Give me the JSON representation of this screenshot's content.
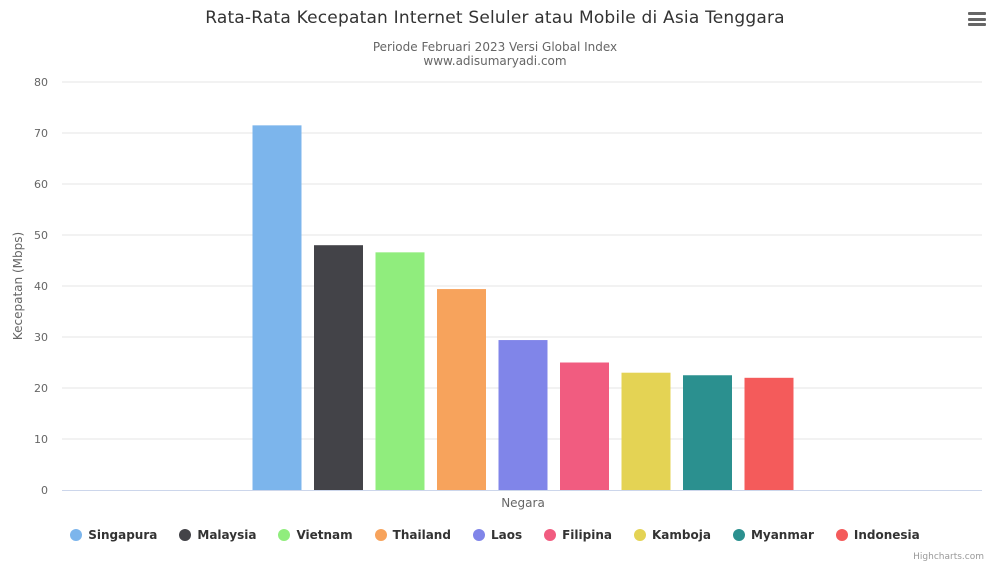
{
  "title": "Rata-Rata Kecepatan Internet Seluler atau Mobile di Asia Tenggara",
  "subtitle_line1": "Periode Februari 2023 Versi Global Index",
  "subtitle_line2": "www.adisumaryadi.com",
  "credits": "Highcharts.com",
  "menu_icon": "hamburger-icon",
  "chart_data": {
    "type": "bar",
    "xlabel": "Negara",
    "ylabel": "Kecepatan (Mbps)",
    "ylim": [
      0,
      80
    ],
    "yticks": [
      0,
      10,
      20,
      30,
      40,
      50,
      60,
      70,
      80
    ],
    "grid": true,
    "legend_position": "bottom-center",
    "series": [
      {
        "name": "Singapura",
        "value": 71.5,
        "color": "#7cb5ec"
      },
      {
        "name": "Malaysia",
        "value": 48.0,
        "color": "#434348"
      },
      {
        "name": "Vietnam",
        "value": 46.6,
        "color": "#90ed7d"
      },
      {
        "name": "Thailand",
        "value": 39.4,
        "color": "#f7a35c"
      },
      {
        "name": "Laos",
        "value": 29.4,
        "color": "#8085e9"
      },
      {
        "name": "Filipina",
        "value": 25.0,
        "color": "#f15c80"
      },
      {
        "name": "Kamboja",
        "value": 23.0,
        "color": "#e4d354"
      },
      {
        "name": "Myanmar",
        "value": 22.5,
        "color": "#2b908f"
      },
      {
        "name": "Indonesia",
        "value": 22.0,
        "color": "#f45b5b"
      }
    ]
  }
}
